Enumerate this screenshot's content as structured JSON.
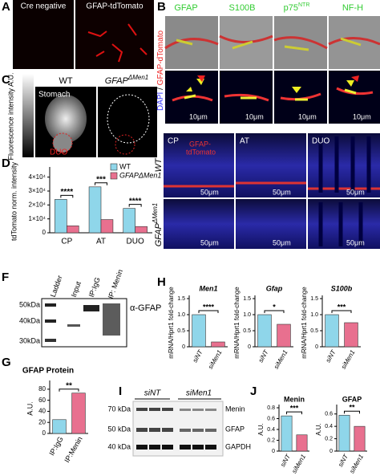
{
  "panel_labels": [
    "A",
    "B",
    "C",
    "D",
    "E",
    "F",
    "G",
    "H",
    "I",
    "J"
  ],
  "panel_a": {
    "columns": [
      "Cre negative",
      "GFAP-tdTomato"
    ]
  },
  "panel_b": {
    "columns": [
      "GFAP",
      "S100B",
      {
        "base": "p75",
        "sup": "NTR"
      },
      "NF-H"
    ],
    "row_label": [
      "DAPI",
      " / ",
      "GFAP-dTomato"
    ],
    "scale_bars": [
      "10μm",
      "10μm",
      "10μm",
      "10μm"
    ]
  },
  "panel_c": {
    "intensity_label": "Fluorescence intensity A.U.",
    "groups": [
      "WT",
      {
        "base": "GFAP",
        "sup": "ΔMen1"
      }
    ],
    "regions": [
      "Stomach",
      "DUO"
    ]
  },
  "panel_e": {
    "columns": [
      "CP",
      "AT",
      "DUO"
    ],
    "stain": [
      "GFAP-",
      "tdTomato"
    ],
    "rows": [
      {
        "base": "WT"
      },
      {
        "base": "GFAP",
        "sup": "ΔMen1"
      }
    ],
    "scale_bars": [
      "50μm",
      "50μm",
      "50μm",
      "50μm",
      "50μm",
      "50μm"
    ]
  },
  "panel_f": {
    "lanes": [
      "Ladder",
      "Input",
      "IP:IgG",
      "IP: Menin"
    ],
    "markers": [
      "50kDa",
      "40kDa",
      "30kDa"
    ],
    "antibody": "α-GFAP"
  },
  "panel_i": {
    "groups": [
      "siNT",
      "siMen1"
    ],
    "markers": [
      "70 kDa",
      "50 kDa",
      "40 kDa"
    ],
    "proteins": [
      "Menin",
      "GFAP",
      "GAPDH"
    ]
  },
  "charts": {
    "d": {
      "type": "bar",
      "ylabel": "tdTomato norm. intensity",
      "categories": [
        "CP",
        "AT",
        "DUO"
      ],
      "series": [
        {
          "name": "WT",
          "color": "#8fd6ea",
          "values": [
            24000,
            33000,
            17500
          ]
        },
        {
          "name": "GFAPΔMen1",
          "color": "#e8708f",
          "values": [
            5000,
            9500,
            4500
          ]
        }
      ],
      "ylim": [
        0,
        45000
      ],
      "yticks": [
        0,
        {
          "value": 10000,
          "label": "1×10⁴"
        },
        {
          "value": 20000,
          "label": "2×10⁴"
        },
        {
          "value": 30000,
          "label": "3×10⁴"
        },
        {
          "value": 40000,
          "label": "4×10⁴"
        }
      ],
      "significance": [
        "****",
        "***",
        "****"
      ],
      "legend": "upper right"
    },
    "g": {
      "type": "bar",
      "title": "GFAP Protein",
      "ylabel": "A.U.",
      "categories": [
        "IP:IgG",
        "IP:Menin"
      ],
      "values": [
        25,
        73
      ],
      "colors": [
        "#8fd6ea",
        "#e8708f"
      ],
      "ylim": [
        0,
        90
      ],
      "yticks": [
        0,
        20,
        40,
        60,
        80
      ],
      "significance": [
        "**"
      ]
    },
    "h": [
      {
        "type": "bar",
        "title": "Men1",
        "ylabel": "mRNA/Hprt1 fold-change",
        "categories": [
          "siNT",
          "siMen1"
        ],
        "values": [
          1.0,
          0.15
        ],
        "colors": [
          "#8fd6ea",
          "#e8708f"
        ],
        "ylim": [
          0,
          1.5
        ],
        "yticks": [
          0,
          0.5,
          {
            "value": 1,
            "label": "1.0"
          },
          1.5
        ],
        "significance": [
          "****"
        ]
      },
      {
        "type": "bar",
        "title": "Gfap",
        "ylabel": "mRNA/Hprt1 fold-change",
        "categories": [
          "siNT",
          "siMen1"
        ],
        "values": [
          1.0,
          0.7
        ],
        "colors": [
          "#8fd6ea",
          "#e8708f"
        ],
        "ylim": [
          0,
          1.5
        ],
        "yticks": [
          0,
          0.5,
          {
            "value": 1,
            "label": "1.0"
          },
          1.5
        ],
        "significance": [
          "*"
        ]
      },
      {
        "type": "bar",
        "title": "S100b",
        "ylabel": "mRNA/Hprt1 fold-change",
        "categories": [
          "siNT",
          "siMen1"
        ],
        "values": [
          1.0,
          0.75
        ],
        "colors": [
          "#8fd6ea",
          "#e8708f"
        ],
        "ylim": [
          0,
          1.5
        ],
        "yticks": [
          0,
          0.5,
          {
            "value": 1,
            "label": "1.0"
          },
          1.5
        ],
        "significance": [
          "***"
        ]
      }
    ],
    "j": [
      {
        "type": "bar",
        "title": "Menin",
        "ylabel": "A.U.",
        "categories": [
          "siNT",
          "siMen1"
        ],
        "values": [
          0.65,
          0.3
        ],
        "colors": [
          "#8fd6ea",
          "#e8708f"
        ],
        "ylim": [
          0,
          0.8
        ],
        "yticks": [
          0,
          0.2,
          0.4,
          0.6,
          0.8
        ],
        "significance": [
          "***"
        ]
      },
      {
        "type": "bar",
        "title": "GFAP",
        "ylabel": "A.U.",
        "categories": [
          "siNT",
          "siMen1"
        ],
        "values": [
          0.58,
          0.4
        ],
        "colors": [
          "#8fd6ea",
          "#e8708f"
        ],
        "ylim": [
          0,
          0.7
        ],
        "yticks": [
          0,
          0.2,
          0.4,
          0.6
        ],
        "significance": [
          "**"
        ]
      }
    ]
  }
}
